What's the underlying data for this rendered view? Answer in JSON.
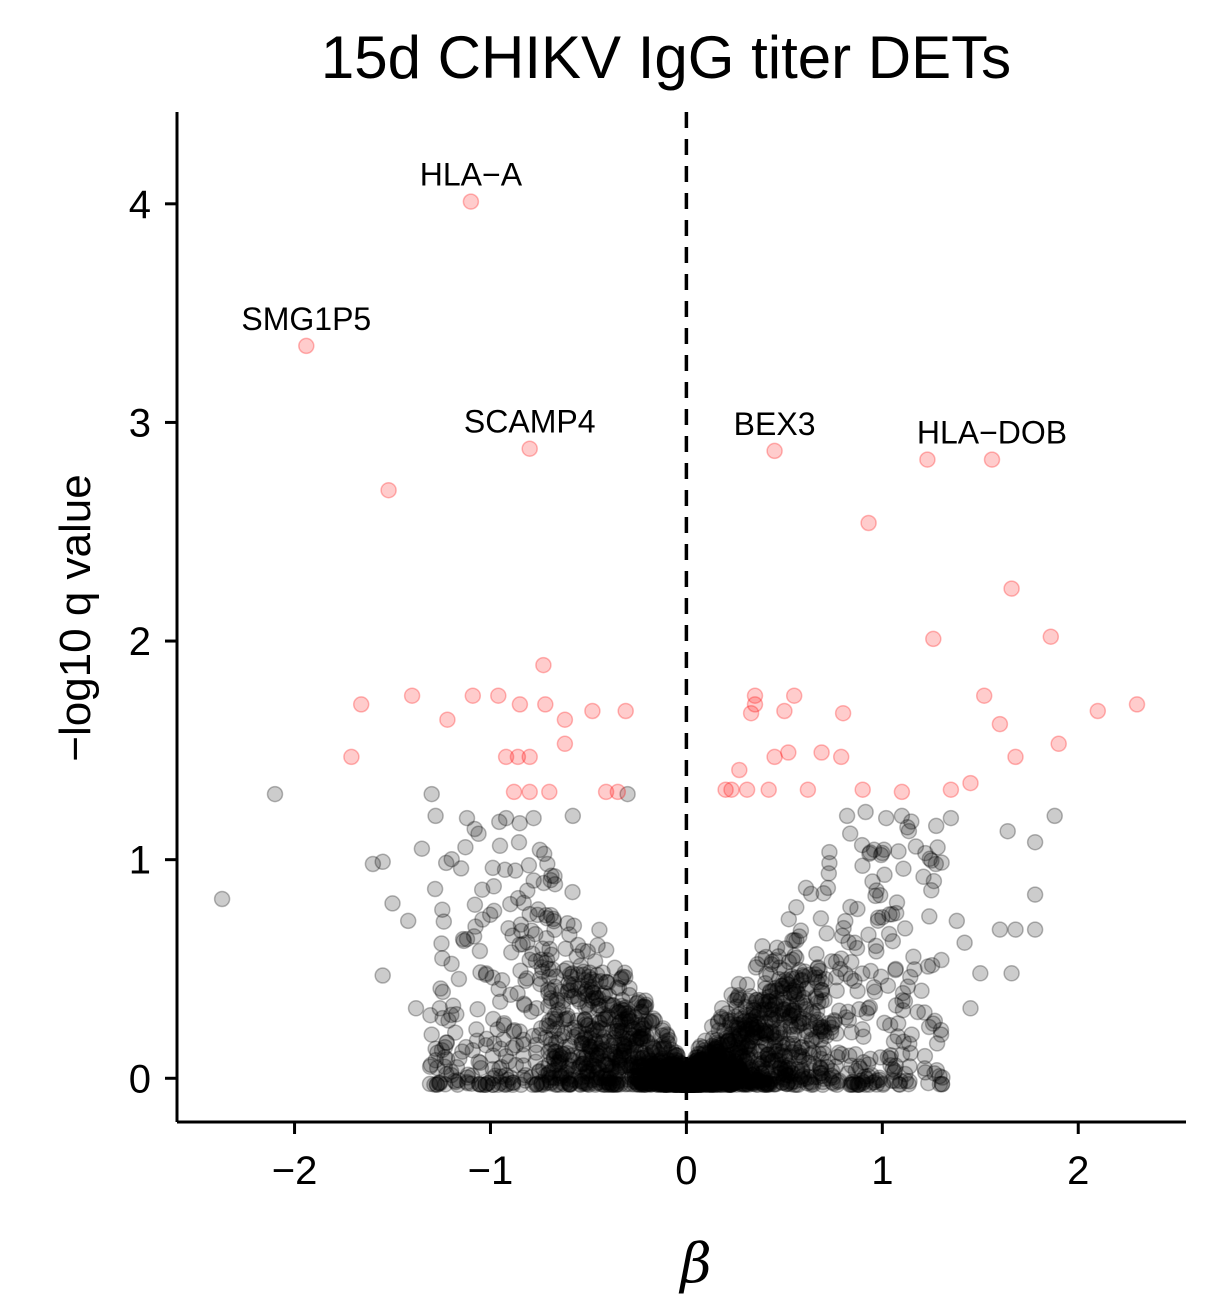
{
  "chart_data": {
    "type": "scatter",
    "title": "15d CHIKV IgG titer DETs",
    "xlabel": "β",
    "ylabel": "−log10 q value",
    "xlim": [
      -2.6,
      2.55
    ],
    "ylim": [
      -0.2,
      4.42
    ],
    "x_ticks": [
      -2,
      -1,
      0,
      1,
      2
    ],
    "x_tick_labels": [
      "−2",
      "−1",
      "0",
      "1",
      "2"
    ],
    "y_ticks": [
      0,
      1,
      2,
      3,
      4
    ],
    "y_tick_labels": [
      "0",
      "1",
      "2",
      "3",
      "4"
    ],
    "reference_line": {
      "x": 0,
      "style": "dashed"
    },
    "grid": false,
    "colors": {
      "significant": "#ff0000",
      "not_significant": "#000000"
    },
    "significant_points": [
      {
        "x": -1.1,
        "y": 4.01
      },
      {
        "x": -1.94,
        "y": 3.35
      },
      {
        "x": -0.8,
        "y": 2.88
      },
      {
        "x": 0.45,
        "y": 2.87
      },
      {
        "x": 1.56,
        "y": 2.83
      },
      {
        "x": 1.23,
        "y": 2.83
      },
      {
        "x": -1.52,
        "y": 2.69
      },
      {
        "x": 0.93,
        "y": 2.54
      },
      {
        "x": 1.66,
        "y": 2.24
      },
      {
        "x": 1.26,
        "y": 2.01
      },
      {
        "x": 1.86,
        "y": 2.02
      },
      {
        "x": -0.73,
        "y": 1.89
      },
      {
        "x": -1.66,
        "y": 1.71
      },
      {
        "x": -1.4,
        "y": 1.75
      },
      {
        "x": -1.09,
        "y": 1.75
      },
      {
        "x": -0.96,
        "y": 1.75
      },
      {
        "x": -0.85,
        "y": 1.71
      },
      {
        "x": -0.72,
        "y": 1.71
      },
      {
        "x": -0.62,
        "y": 1.64
      },
      {
        "x": -0.48,
        "y": 1.68
      },
      {
        "x": -0.31,
        "y": 1.68
      },
      {
        "x": -1.22,
        "y": 1.64
      },
      {
        "x": -0.62,
        "y": 1.53
      },
      {
        "x": -1.71,
        "y": 1.47
      },
      {
        "x": -0.92,
        "y": 1.47
      },
      {
        "x": -0.86,
        "y": 1.47
      },
      {
        "x": -0.8,
        "y": 1.47
      },
      {
        "x": -0.88,
        "y": 1.31
      },
      {
        "x": -0.8,
        "y": 1.31
      },
      {
        "x": -0.7,
        "y": 1.31
      },
      {
        "x": -0.41,
        "y": 1.31
      },
      {
        "x": -0.35,
        "y": 1.31
      },
      {
        "x": 0.35,
        "y": 1.75
      },
      {
        "x": 0.55,
        "y": 1.75
      },
      {
        "x": 0.35,
        "y": 1.71
      },
      {
        "x": 0.33,
        "y": 1.67
      },
      {
        "x": 0.5,
        "y": 1.68
      },
      {
        "x": 0.8,
        "y": 1.67
      },
      {
        "x": 0.45,
        "y": 1.47
      },
      {
        "x": 0.52,
        "y": 1.49
      },
      {
        "x": 0.69,
        "y": 1.49
      },
      {
        "x": 0.79,
        "y": 1.47
      },
      {
        "x": 0.27,
        "y": 1.41
      },
      {
        "x": 0.2,
        "y": 1.32
      },
      {
        "x": 0.23,
        "y": 1.32
      },
      {
        "x": 0.31,
        "y": 1.32
      },
      {
        "x": 0.42,
        "y": 1.32
      },
      {
        "x": 0.62,
        "y": 1.32
      },
      {
        "x": 0.9,
        "y": 1.32
      },
      {
        "x": 1.1,
        "y": 1.31
      },
      {
        "x": 1.35,
        "y": 1.32
      },
      {
        "x": 1.45,
        "y": 1.35
      },
      {
        "x": 1.52,
        "y": 1.75
      },
      {
        "x": 1.6,
        "y": 1.62
      },
      {
        "x": 1.68,
        "y": 1.47
      },
      {
        "x": 1.9,
        "y": 1.53
      },
      {
        "x": 2.1,
        "y": 1.68
      },
      {
        "x": 2.3,
        "y": 1.71
      }
    ],
    "outlier_points": [
      {
        "x": -2.37,
        "y": 0.82
      },
      {
        "x": -2.1,
        "y": 1.3
      },
      {
        "x": -1.6,
        "y": 0.98
      },
      {
        "x": -1.55,
        "y": 0.99
      },
      {
        "x": -1.5,
        "y": 0.8
      },
      {
        "x": -1.42,
        "y": 0.72
      },
      {
        "x": -1.35,
        "y": 1.05
      },
      {
        "x": -1.3,
        "y": 1.3
      },
      {
        "x": -1.28,
        "y": 1.2
      },
      {
        "x": -1.12,
        "y": 1.19
      },
      {
        "x": -1.15,
        "y": 0.96
      },
      {
        "x": -0.92,
        "y": 1.19
      },
      {
        "x": -0.78,
        "y": 1.19
      },
      {
        "x": -0.58,
        "y": 1.2
      },
      {
        "x": -0.3,
        "y": 1.3
      },
      {
        "x": -1.55,
        "y": 0.47
      },
      {
        "x": -1.38,
        "y": 0.32
      },
      {
        "x": -1.3,
        "y": 0.2
      },
      {
        "x": -1.2,
        "y": 0.29
      },
      {
        "x": -1.02,
        "y": 0.18
      },
      {
        "x": 0.82,
        "y": 1.2
      },
      {
        "x": 1.02,
        "y": 1.19
      },
      {
        "x": 1.1,
        "y": 1.2
      },
      {
        "x": 1.22,
        "y": 1.03
      },
      {
        "x": 1.35,
        "y": 1.19
      },
      {
        "x": 1.64,
        "y": 1.13
      },
      {
        "x": 1.88,
        "y": 1.2
      },
      {
        "x": 1.78,
        "y": 1.08
      },
      {
        "x": 1.78,
        "y": 0.84
      },
      {
        "x": 1.6,
        "y": 0.68
      },
      {
        "x": 1.68,
        "y": 0.68
      },
      {
        "x": 1.78,
        "y": 0.68
      },
      {
        "x": 1.66,
        "y": 0.48
      },
      {
        "x": 1.5,
        "y": 0.48
      },
      {
        "x": 1.38,
        "y": 0.72
      },
      {
        "x": 1.42,
        "y": 0.62
      },
      {
        "x": 1.45,
        "y": 0.32
      },
      {
        "x": 1.2,
        "y": 0.4
      },
      {
        "x": 1.15,
        "y": 0.2
      },
      {
        "x": 1.3,
        "y": 0.2
      },
      {
        "x": 1.25,
        "y": 0.86
      },
      {
        "x": 0.95,
        "y": 0.9
      },
      {
        "x": 1.05,
        "y": 0.75
      }
    ],
    "labels": [
      {
        "text": "HLA−A",
        "x": -1.1,
        "y": 4.01
      },
      {
        "text": "SMG1P5",
        "x": -1.94,
        "y": 3.35
      },
      {
        "text": "SCAMP4",
        "x": -0.8,
        "y": 2.88
      },
      {
        "text": "BEX3",
        "x": 0.45,
        "y": 2.87
      },
      {
        "text": "HLA−DOB",
        "x": 1.56,
        "y": 2.83
      }
    ]
  }
}
